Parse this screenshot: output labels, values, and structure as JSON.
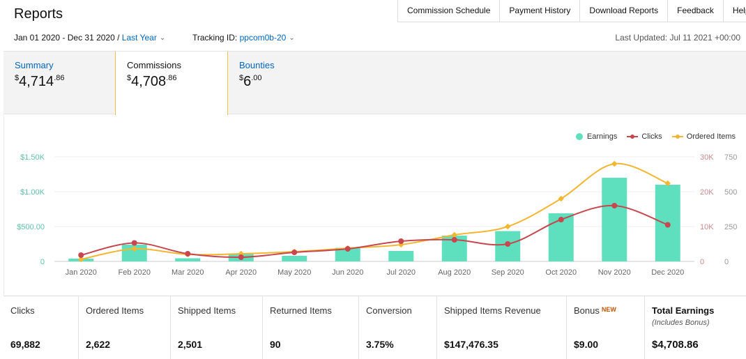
{
  "header": {
    "title": "Reports"
  },
  "nav": {
    "items": [
      "Commission Schedule",
      "Payment History",
      "Download Reports",
      "Feedback",
      "Help"
    ]
  },
  "filters": {
    "date_range": "Jan 01 2020 - Dec 31 2020 /",
    "period": "Last Year",
    "tracking_label": "Tracking ID:",
    "tracking_id": "ppcom0b-20",
    "last_updated": "Last Updated: Jul 11 2021 +00:00"
  },
  "tabs": [
    {
      "label": "Summary",
      "currency": "$",
      "whole": "4,714",
      "cents": ".86"
    },
    {
      "label": "Commissions",
      "currency": "$",
      "whole": "4,708",
      "cents": ".86"
    },
    {
      "label": "Bounties",
      "currency": "$",
      "whole": "6",
      "cents": ".00"
    }
  ],
  "legend": {
    "earnings": "Earnings",
    "clicks": "Clicks",
    "ordered": "Ordered Items"
  },
  "colors": {
    "earnings": "#5ee0bf",
    "clicks": "#c7474e",
    "ordered": "#f2b632",
    "link": "#0066c0",
    "accent_border": "#f0c14b",
    "new_badge": "#c45500"
  },
  "chart_data": {
    "type": "bar",
    "categories": [
      "Jan 2020",
      "Feb 2020",
      "Mar 2020",
      "Apr 2020",
      "May 2020",
      "Jun 2020",
      "Jul 2020",
      "Aug 2020",
      "Sep 2020",
      "Oct 2020",
      "Nov 2020",
      "Dec 2020"
    ],
    "series": [
      {
        "name": "Earnings",
        "axis": "left",
        "chart": "bar",
        "values": [
          40,
          240,
          45,
          110,
          80,
          195,
          150,
          370,
          435,
          690,
          1200,
          1100
        ]
      },
      {
        "name": "Clicks",
        "axis": "right1",
        "chart": "line",
        "values": [
          1800,
          5300,
          2200,
          1200,
          2600,
          3600,
          5800,
          6200,
          5000,
          12000,
          16000,
          10500
        ]
      },
      {
        "name": "Ordered Items",
        "axis": "right2",
        "chart": "line",
        "values": [
          15,
          90,
          50,
          55,
          70,
          95,
          120,
          190,
          250,
          450,
          700,
          560
        ]
      }
    ],
    "y_left": {
      "ticks": [
        "0",
        "$500.00",
        "$1.00K",
        "$1.50K"
      ],
      "range": [
        0,
        1500
      ]
    },
    "y_right1": {
      "ticks": [
        "0",
        "10K",
        "20K",
        "30K"
      ],
      "range": [
        0,
        30000
      ]
    },
    "y_right2": {
      "ticks": [
        "0",
        "250",
        "500",
        "750"
      ],
      "range": [
        0,
        750
      ]
    },
    "grid": true,
    "legend_position": "top-right"
  },
  "stats": [
    {
      "label": "Clicks",
      "value": "69,882"
    },
    {
      "label": "Ordered Items",
      "value": "2,622"
    },
    {
      "label": "Shipped Items",
      "value": "2,501"
    },
    {
      "label": "Returned Items",
      "value": "90"
    },
    {
      "label": "Conversion",
      "value": "3.75%"
    },
    {
      "label": "Shipped Items Revenue",
      "value": "$147,476.35"
    },
    {
      "label": "Bonus",
      "badge": "NEW",
      "value": "$9.00"
    },
    {
      "label": "Total Earnings",
      "note": "(Includes Bonus)",
      "value": "$4,708.86"
    }
  ]
}
